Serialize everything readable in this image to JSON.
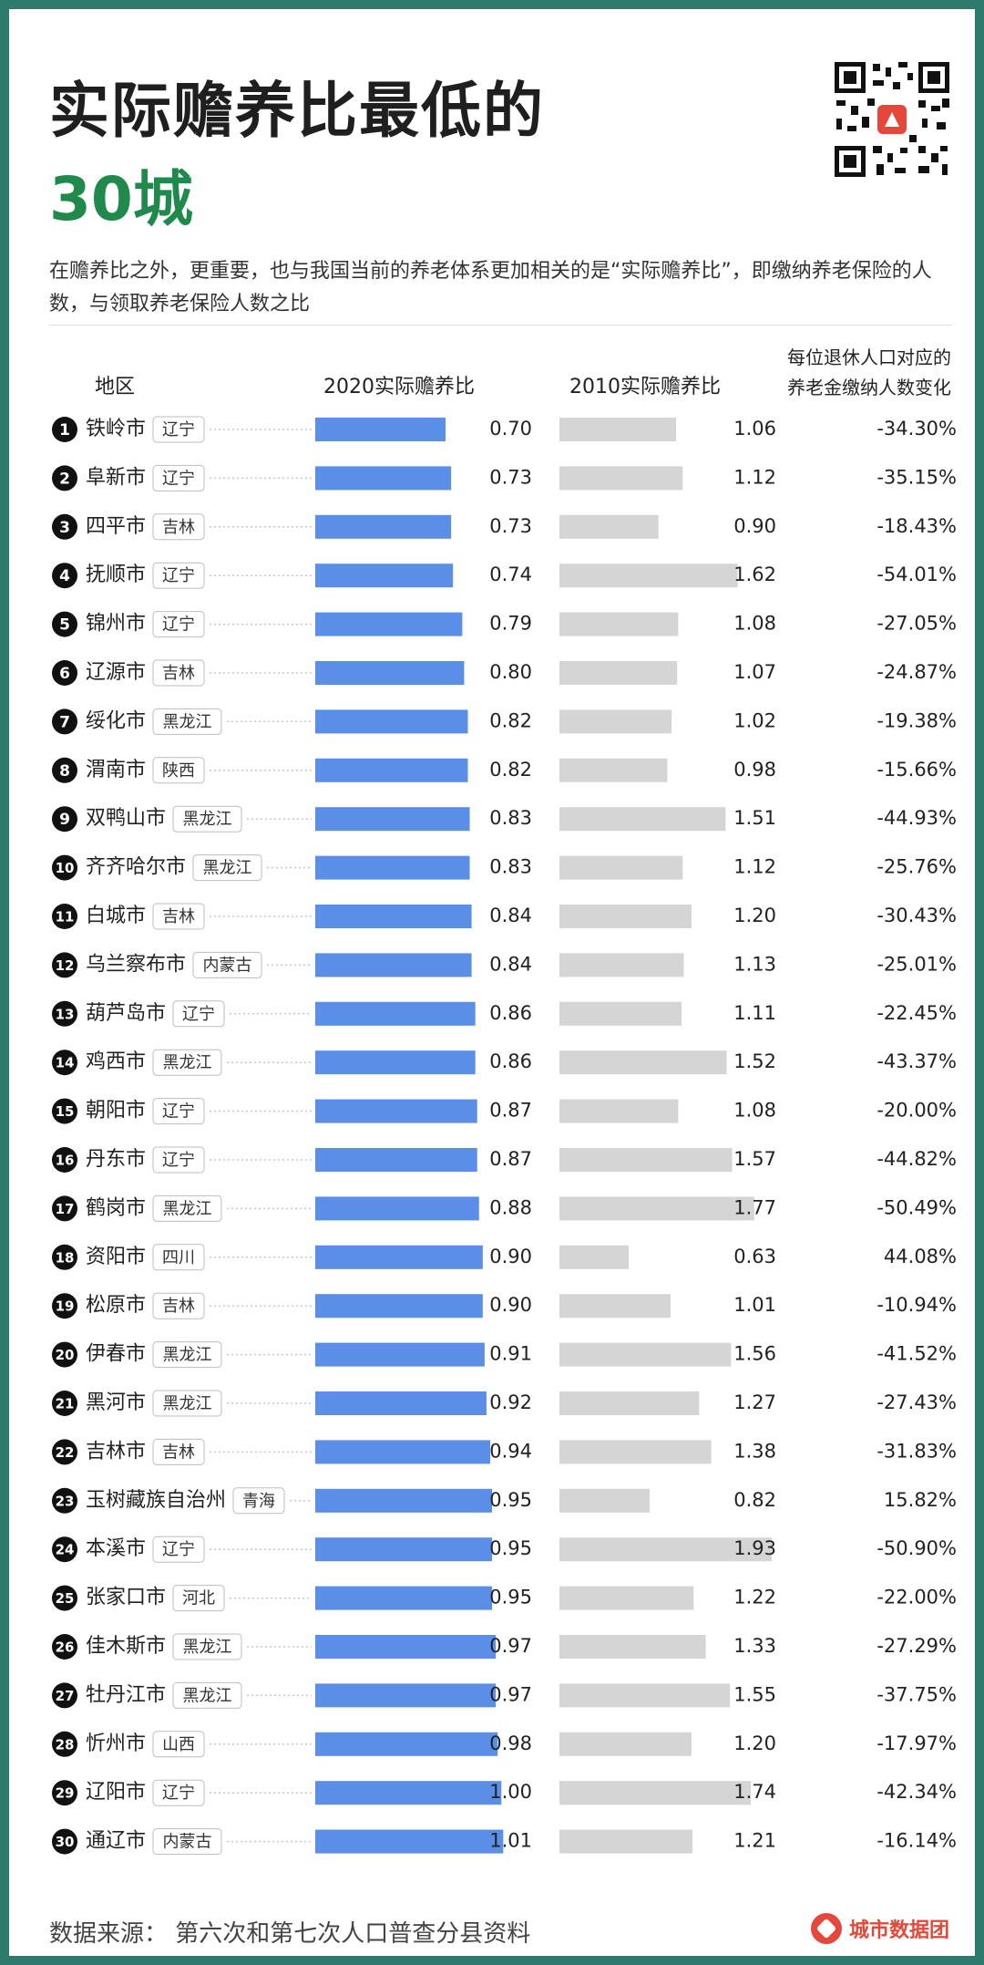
{
  "header": {
    "title_line1": "实际赡养比最低的",
    "title_line2": "30城",
    "description": "在赡养比之外，更重要，也与我国当前的养老体系更加相关的是“实际赡养比”，即缴纳养老保险的人数，与领取养老保险人数之比",
    "qr_icon": "qr-code-icon"
  },
  "columns": {
    "region": "地区",
    "ratio_2020": "2020实际赡养比",
    "ratio_2010": "2010实际赡养比",
    "change_line1": "每位退休人口对应的",
    "change_line2": "养老金缴纳人数变化"
  },
  "footer": {
    "source": "数据来源：  第六次和第七次人口普查分县资料",
    "brand": "城市数据团"
  },
  "colors": {
    "bar_2020": "#5b8ee6",
    "bar_2010": "#d5d5d5",
    "accent": "#1f8a4c",
    "brand": "#e5483b"
  },
  "chart_data": {
    "type": "bar",
    "categories": [
      "铁岭市",
      "阜新市",
      "四平市",
      "抚顺市",
      "锦州市",
      "辽源市",
      "绥化市",
      "渭南市",
      "双鸭山市",
      "齐齐哈尔市",
      "白城市",
      "乌兰察布市",
      "葫芦岛市",
      "鸡西市",
      "朝阳市",
      "丹东市",
      "鹤岗市",
      "资阳市",
      "松原市",
      "伊春市",
      "黑河市",
      "吉林市",
      "玉树藏族自治州",
      "本溪市",
      "张家口市",
      "佳木斯市",
      "牡丹江市",
      "忻州市",
      "辽阳市",
      "通辽市"
    ],
    "provinces": [
      "辽宁",
      "辽宁",
      "吉林",
      "辽宁",
      "辽宁",
      "吉林",
      "黑龙江",
      "陕西",
      "黑龙江",
      "黑龙江",
      "吉林",
      "内蒙古",
      "辽宁",
      "黑龙江",
      "辽宁",
      "辽宁",
      "黑龙江",
      "四川",
      "吉林",
      "黑龙江",
      "黑龙江",
      "吉林",
      "青海",
      "辽宁",
      "河北",
      "黑龙江",
      "黑龙江",
      "山西",
      "辽宁",
      "内蒙古"
    ],
    "series": [
      {
        "name": "2020实际赡养比",
        "values": [
          "0.70",
          "0.73",
          "0.73",
          "0.74",
          "0.79",
          "0.80",
          "0.82",
          "0.82",
          "0.83",
          "0.83",
          "0.84",
          "0.84",
          "0.86",
          "0.86",
          "0.87",
          "0.87",
          "0.88",
          "0.90",
          "0.90",
          "0.91",
          "0.92",
          "0.94",
          "0.95",
          "0.95",
          "0.95",
          "0.97",
          "0.97",
          "0.98",
          "1.00",
          "1.01"
        ]
      },
      {
        "name": "2010实际赡养比",
        "values": [
          "1.06",
          "1.12",
          "0.90",
          "1.62",
          "1.08",
          "1.07",
          "1.02",
          "0.98",
          "1.51",
          "1.12",
          "1.20",
          "1.13",
          "1.11",
          "1.52",
          "1.08",
          "1.57",
          "1.77",
          "0.63",
          "1.01",
          "1.56",
          "1.27",
          "1.38",
          "0.82",
          "1.93",
          "1.22",
          "1.33",
          "1.55",
          "1.20",
          "1.74",
          "1.21"
        ]
      },
      {
        "name": "每位退休人口对应的养老金缴纳人数变化",
        "values": [
          "-34.30%",
          "-35.15%",
          "-18.43%",
          "-54.01%",
          "-27.05%",
          "-24.87%",
          "-19.38%",
          "-15.66%",
          "-44.93%",
          "-25.76%",
          "-30.43%",
          "-25.01%",
          "-22.45%",
          "-43.37%",
          "-20.00%",
          "-44.82%",
          "-50.49%",
          "44.08%",
          "-10.94%",
          "-41.52%",
          "-27.43%",
          "-31.83%",
          "15.82%",
          "-50.90%",
          "-22.00%",
          "-27.29%",
          "-37.75%",
          "-17.97%",
          "-42.34%",
          "-16.14%"
        ]
      }
    ]
  }
}
